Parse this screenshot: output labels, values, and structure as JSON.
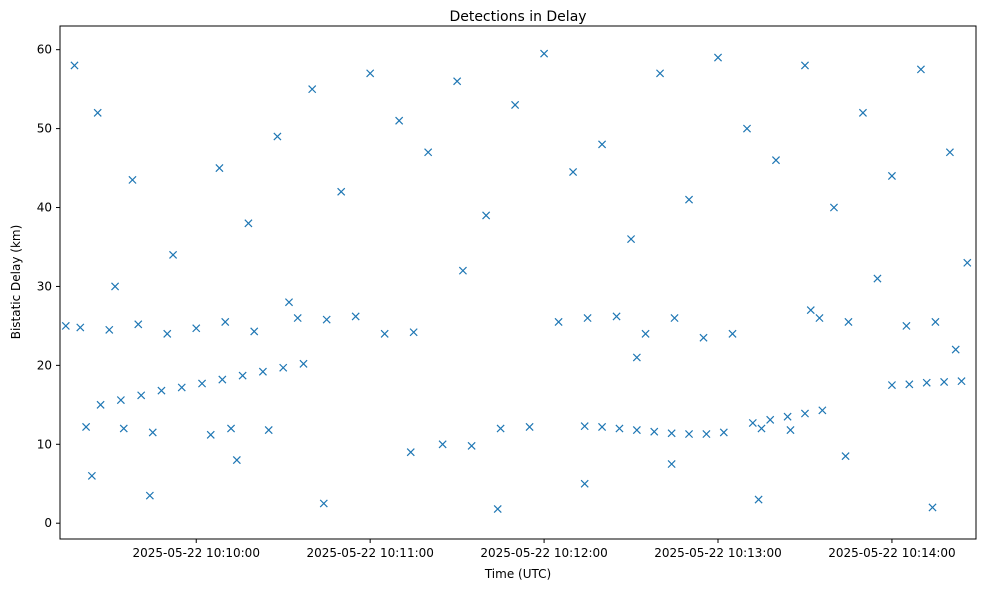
{
  "chart_data": {
    "type": "scatter",
    "title": "Detections in Delay",
    "xlabel": "Time (UTC)",
    "ylabel": "Bistatic Delay (km)",
    "marker": "x",
    "marker_color": "#1f77b4",
    "grid": false,
    "legend": "none",
    "xlim": [
      "2025-05-22 10:09:13",
      "2025-05-22 10:14:29"
    ],
    "ylim": [
      -2,
      63
    ],
    "xticks": [
      "2025-05-22 10:10:00",
      "2025-05-22 10:11:00",
      "2025-05-22 10:12:00",
      "2025-05-22 10:13:00",
      "2025-05-22 10:14:00"
    ],
    "yticks": [
      0,
      10,
      20,
      30,
      40,
      50,
      60
    ],
    "series": [
      {
        "x": [
          "2025-05-22 10:09:27",
          "2025-05-22 10:09:34",
          "2025-05-22 10:09:41",
          "2025-05-22 10:09:48",
          "2025-05-22 10:09:55",
          "2025-05-22 10:10:02",
          "2025-05-22 10:10:09",
          "2025-05-22 10:10:16",
          "2025-05-22 10:10:23",
          "2025-05-22 10:10:30",
          "2025-05-22 10:10:37",
          "2025-05-22 10:12:14",
          "2025-05-22 10:12:20",
          "2025-05-22 10:12:26",
          "2025-05-22 10:12:32",
          "2025-05-22 10:12:38",
          "2025-05-22 10:12:44",
          "2025-05-22 10:12:50",
          "2025-05-22 10:12:56",
          "2025-05-22 10:13:02",
          "2025-05-22 10:13:12",
          "2025-05-22 10:13:18",
          "2025-05-22 10:13:24",
          "2025-05-22 10:13:30",
          "2025-05-22 10:13:36",
          "2025-05-22 10:14:00",
          "2025-05-22 10:14:06",
          "2025-05-22 10:14:12",
          "2025-05-22 10:14:18",
          "2025-05-22 10:14:24"
        ],
        "y": [
          15.0,
          15.6,
          16.2,
          16.8,
          17.2,
          17.7,
          18.2,
          18.7,
          19.2,
          19.7,
          20.2,
          12.3,
          12.2,
          12.0,
          11.8,
          11.6,
          11.4,
          11.3,
          11.3,
          11.5,
          12.7,
          13.1,
          13.5,
          13.9,
          14.3,
          17.5,
          17.6,
          17.8,
          17.9,
          18.0
        ]
      },
      {
        "x": [
          "2025-05-22 10:09:15",
          "2025-05-22 10:09:20",
          "2025-05-22 10:09:30",
          "2025-05-22 10:09:40",
          "2025-05-22 10:09:50",
          "2025-05-22 10:10:00",
          "2025-05-22 10:10:10",
          "2025-05-22 10:10:20",
          "2025-05-22 10:09:22",
          "2025-05-22 10:09:35",
          "2025-05-22 10:09:45",
          "2025-05-22 10:10:05",
          "2025-05-22 10:10:12",
          "2025-05-22 10:10:25",
          "2025-05-22 10:10:35",
          "2025-05-22 10:10:45",
          "2025-05-22 10:10:55",
          "2025-05-22 10:11:05",
          "2025-05-22 10:11:15",
          "2025-05-22 10:11:25",
          "2025-05-22 10:11:35",
          "2025-05-22 10:11:45",
          "2025-05-22 10:11:55",
          "2025-05-22 10:12:05",
          "2025-05-22 10:12:15",
          "2025-05-22 10:12:25",
          "2025-05-22 10:12:35",
          "2025-05-22 10:12:45",
          "2025-05-22 10:12:55",
          "2025-05-22 10:13:05",
          "2025-05-22 10:13:15",
          "2025-05-22 10:13:25",
          "2025-05-22 10:13:35",
          "2025-05-22 10:13:45",
          "2025-05-22 10:13:55",
          "2025-05-22 10:14:05",
          "2025-05-22 10:14:15",
          "2025-05-22 10:09:18",
          "2025-05-22 10:09:26",
          "2025-05-22 10:09:38",
          "2025-05-22 10:09:52",
          "2025-05-22 10:10:08",
          "2025-05-22 10:10:18",
          "2025-05-22 10:10:28",
          "2025-05-22 10:10:40",
          "2025-05-22 10:10:50",
          "2025-05-22 10:11:00",
          "2025-05-22 10:11:10",
          "2025-05-22 10:11:20",
          "2025-05-22 10:11:30",
          "2025-05-22 10:11:40",
          "2025-05-22 10:11:50",
          "2025-05-22 10:12:00",
          "2025-05-22 10:12:10",
          "2025-05-22 10:12:20",
          "2025-05-22 10:12:30",
          "2025-05-22 10:12:40",
          "2025-05-22 10:12:50",
          "2025-05-22 10:13:00",
          "2025-05-22 10:13:10",
          "2025-05-22 10:13:20",
          "2025-05-22 10:13:30",
          "2025-05-22 10:13:40",
          "2025-05-22 10:13:50",
          "2025-05-22 10:14:00",
          "2025-05-22 10:14:10",
          "2025-05-22 10:14:20",
          "2025-05-22 10:14:26",
          "2025-05-22 10:09:24",
          "2025-05-22 10:09:44",
          "2025-05-22 10:10:14",
          "2025-05-22 10:10:44",
          "2025-05-22 10:11:14",
          "2025-05-22 10:11:44",
          "2025-05-22 10:12:14",
          "2025-05-22 10:12:44",
          "2025-05-22 10:13:14",
          "2025-05-22 10:13:44",
          "2025-05-22 10:14:14",
          "2025-05-22 10:09:32",
          "2025-05-22 10:10:32",
          "2025-05-22 10:11:32",
          "2025-05-22 10:12:32",
          "2025-05-22 10:13:32",
          "2025-05-22 10:14:22"
        ],
        "y": [
          25.0,
          24.8,
          24.5,
          25.2,
          24.0,
          24.7,
          25.5,
          24.3,
          12.2,
          12.0,
          11.5,
          11.2,
          12.0,
          11.8,
          26.0,
          25.8,
          26.2,
          24.0,
          24.2,
          10.0,
          9.8,
          12.0,
          12.2,
          25.5,
          26.0,
          26.2,
          24.0,
          26.0,
          23.5,
          24.0,
          12.0,
          11.8,
          26.0,
          25.5,
          31.0,
          25.0,
          25.5,
          58.0,
          52.0,
          43.5,
          34.0,
          45.0,
          38.0,
          49.0,
          55.0,
          42.0,
          57.0,
          51.0,
          47.0,
          56.0,
          39.0,
          53.0,
          59.5,
          44.5,
          48.0,
          36.0,
          57.0,
          41.0,
          59.0,
          50.0,
          46.0,
          58.0,
          40.0,
          52.0,
          44.0,
          57.5,
          47.0,
          33.0,
          6.0,
          3.5,
          8.0,
          2.5,
          9.0,
          1.8,
          5.0,
          7.5,
          3.0,
          8.5,
          2.0,
          30.0,
          28.0,
          32.0,
          21.0,
          27.0,
          22.0
        ]
      }
    ]
  }
}
